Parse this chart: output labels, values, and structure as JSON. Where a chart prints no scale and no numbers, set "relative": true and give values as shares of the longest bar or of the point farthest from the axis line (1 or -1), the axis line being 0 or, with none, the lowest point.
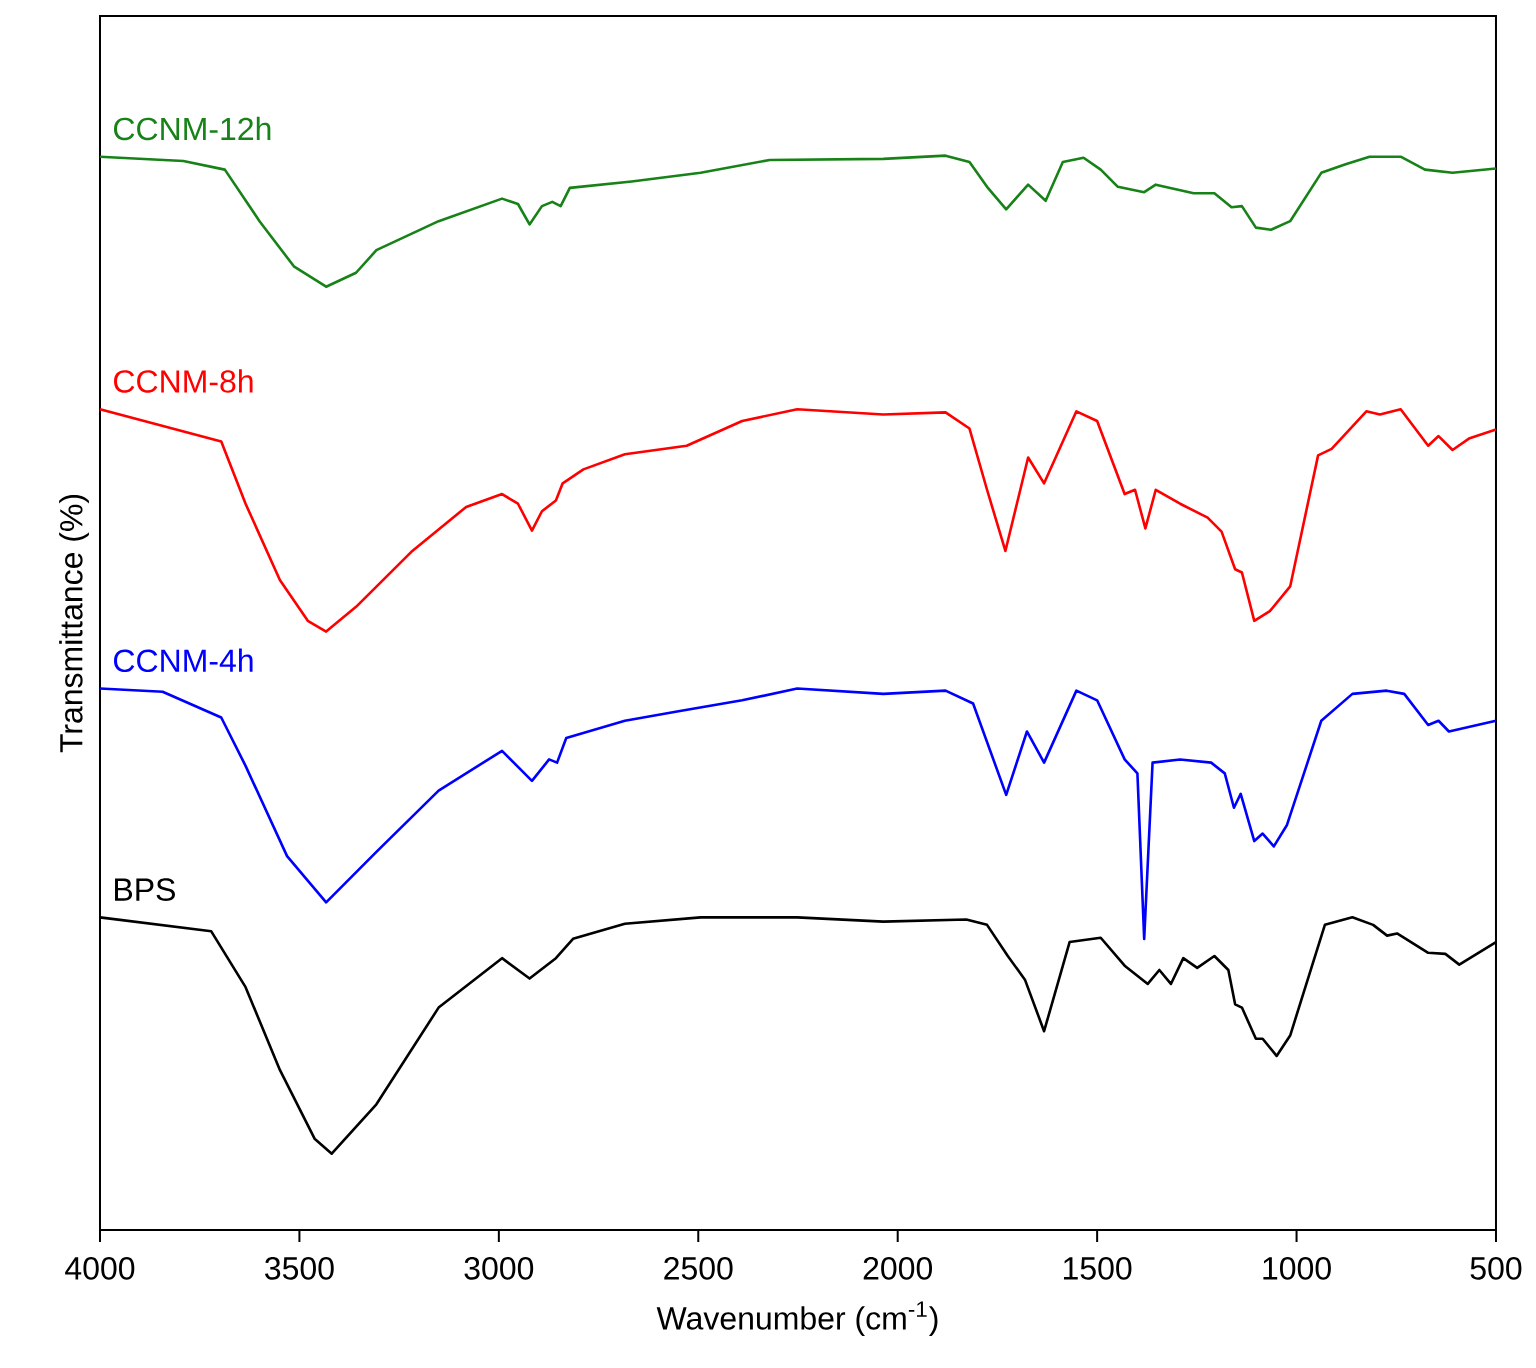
{
  "chart_data": {
    "type": "line",
    "relative": true,
    "xlabel": "Wavenumber (cm$^{-1}$)",
    "ylabel": "Transmittance (%)",
    "xlim": [
      4000,
      500
    ],
    "xticks": [
      4000,
      3500,
      3000,
      2500,
      2000,
      1500,
      1000,
      500
    ],
    "series": [
      {
        "name": "CCNM-12h",
        "color": "#178217",
        "x": [
          4000,
          3791,
          3687,
          3600,
          3514,
          3433,
          3358,
          3307,
          3151,
          2992,
          2952,
          2923,
          2892,
          2866,
          2845,
          2822,
          2667,
          2494,
          2321,
          2036,
          1880,
          1820,
          1776,
          1728,
          1673,
          1629,
          1586,
          1534,
          1491,
          1448,
          1382,
          1353,
          1258,
          1206,
          1163,
          1137,
          1102,
          1064,
          1016,
          938,
          877,
          817,
          739,
          678,
          609,
          500
        ],
        "values": [
          0.999,
          0.995,
          0.987,
          0.939,
          0.897,
          0.878,
          0.891,
          0.912,
          0.939,
          0.96,
          0.955,
          0.936,
          0.953,
          0.957,
          0.953,
          0.97,
          0.976,
          0.984,
          0.996,
          0.997,
          1.0,
          0.994,
          0.971,
          0.95,
          0.973,
          0.958,
          0.994,
          0.998,
          0.987,
          0.971,
          0.966,
          0.973,
          0.965,
          0.965,
          0.952,
          0.953,
          0.933,
          0.931,
          0.939,
          0.984,
          0.992,
          0.999,
          0.999,
          0.987,
          0.984,
          0.988
        ]
      },
      {
        "name": "CCNM-8h",
        "color": "#ff0000",
        "x": [
          4000,
          3696,
          3635,
          3549,
          3479,
          3433,
          3358,
          3220,
          3082,
          2992,
          2952,
          2917,
          2892,
          2857,
          2840,
          2788,
          2684,
          2529,
          2390,
          2252,
          2036,
          1880,
          1820,
          1776,
          1730,
          1673,
          1633,
          1552,
          1500,
          1431,
          1405,
          1379,
          1353,
          1292,
          1223,
          1188,
          1154,
          1137,
          1106,
          1067,
          1016,
          946,
          912,
          825,
          791,
          739,
          670,
          644,
          609,
          566,
          500
        ],
        "values": [
          0.764,
          0.734,
          0.676,
          0.605,
          0.567,
          0.557,
          0.58,
          0.631,
          0.673,
          0.685,
          0.676,
          0.651,
          0.669,
          0.679,
          0.695,
          0.708,
          0.722,
          0.73,
          0.753,
          0.764,
          0.759,
          0.761,
          0.746,
          0.689,
          0.632,
          0.719,
          0.695,
          0.762,
          0.753,
          0.685,
          0.689,
          0.653,
          0.689,
          0.676,
          0.663,
          0.65,
          0.615,
          0.612,
          0.567,
          0.576,
          0.599,
          0.721,
          0.727,
          0.762,
          0.759,
          0.764,
          0.73,
          0.739,
          0.726,
          0.737,
          0.745
        ]
      },
      {
        "name": "CCNM-4h",
        "color": "#0000ff",
        "x": [
          4000,
          3843,
          3696,
          3635,
          3531,
          3433,
          3307,
          3151,
          2992,
          2917,
          2874,
          2854,
          2831,
          2684,
          2546,
          2390,
          2252,
          2036,
          1880,
          1811,
          1728,
          1676,
          1633,
          1552,
          1500,
          1431,
          1399,
          1382,
          1361,
          1292,
          1214,
          1180,
          1157,
          1140,
          1106,
          1085,
          1057,
          1024,
          938,
          860,
          774,
          730,
          670,
          644,
          618,
          500
        ],
        "values": [
          0.504,
          0.501,
          0.477,
          0.432,
          0.348,
          0.305,
          0.352,
          0.409,
          0.446,
          0.418,
          0.438,
          0.435,
          0.458,
          0.474,
          0.483,
          0.493,
          0.504,
          0.499,
          0.502,
          0.49,
          0.405,
          0.464,
          0.435,
          0.502,
          0.493,
          0.438,
          0.425,
          0.271,
          0.435,
          0.438,
          0.435,
          0.425,
          0.393,
          0.406,
          0.362,
          0.369,
          0.357,
          0.377,
          0.474,
          0.499,
          0.502,
          0.499,
          0.47,
          0.474,
          0.464,
          0.474
        ]
      },
      {
        "name": "BPS",
        "color": "#000000",
        "x": [
          4000,
          3721,
          3635,
          3549,
          3462,
          3419,
          3307,
          3151,
          2992,
          2923,
          2857,
          2814,
          2684,
          2494,
          2252,
          2036,
          1828,
          1776,
          1724,
          1681,
          1633,
          1569,
          1491,
          1431,
          1373,
          1344,
          1315,
          1284,
          1249,
          1206,
          1171,
          1154,
          1137,
          1102,
          1085,
          1050,
          1016,
          929,
          860,
          808,
          773,
          748,
          670,
          627,
          592,
          500
        ],
        "values": [
          0.291,
          0.278,
          0.226,
          0.149,
          0.085,
          0.071,
          0.117,
          0.207,
          0.253,
          0.234,
          0.253,
          0.271,
          0.285,
          0.291,
          0.291,
          0.287,
          0.289,
          0.284,
          0.255,
          0.233,
          0.185,
          0.268,
          0.272,
          0.246,
          0.229,
          0.242,
          0.229,
          0.253,
          0.244,
          0.255,
          0.242,
          0.21,
          0.207,
          0.178,
          0.178,
          0.162,
          0.181,
          0.284,
          0.291,
          0.284,
          0.274,
          0.276,
          0.258,
          0.257,
          0.247,
          0.268
        ]
      }
    ]
  }
}
